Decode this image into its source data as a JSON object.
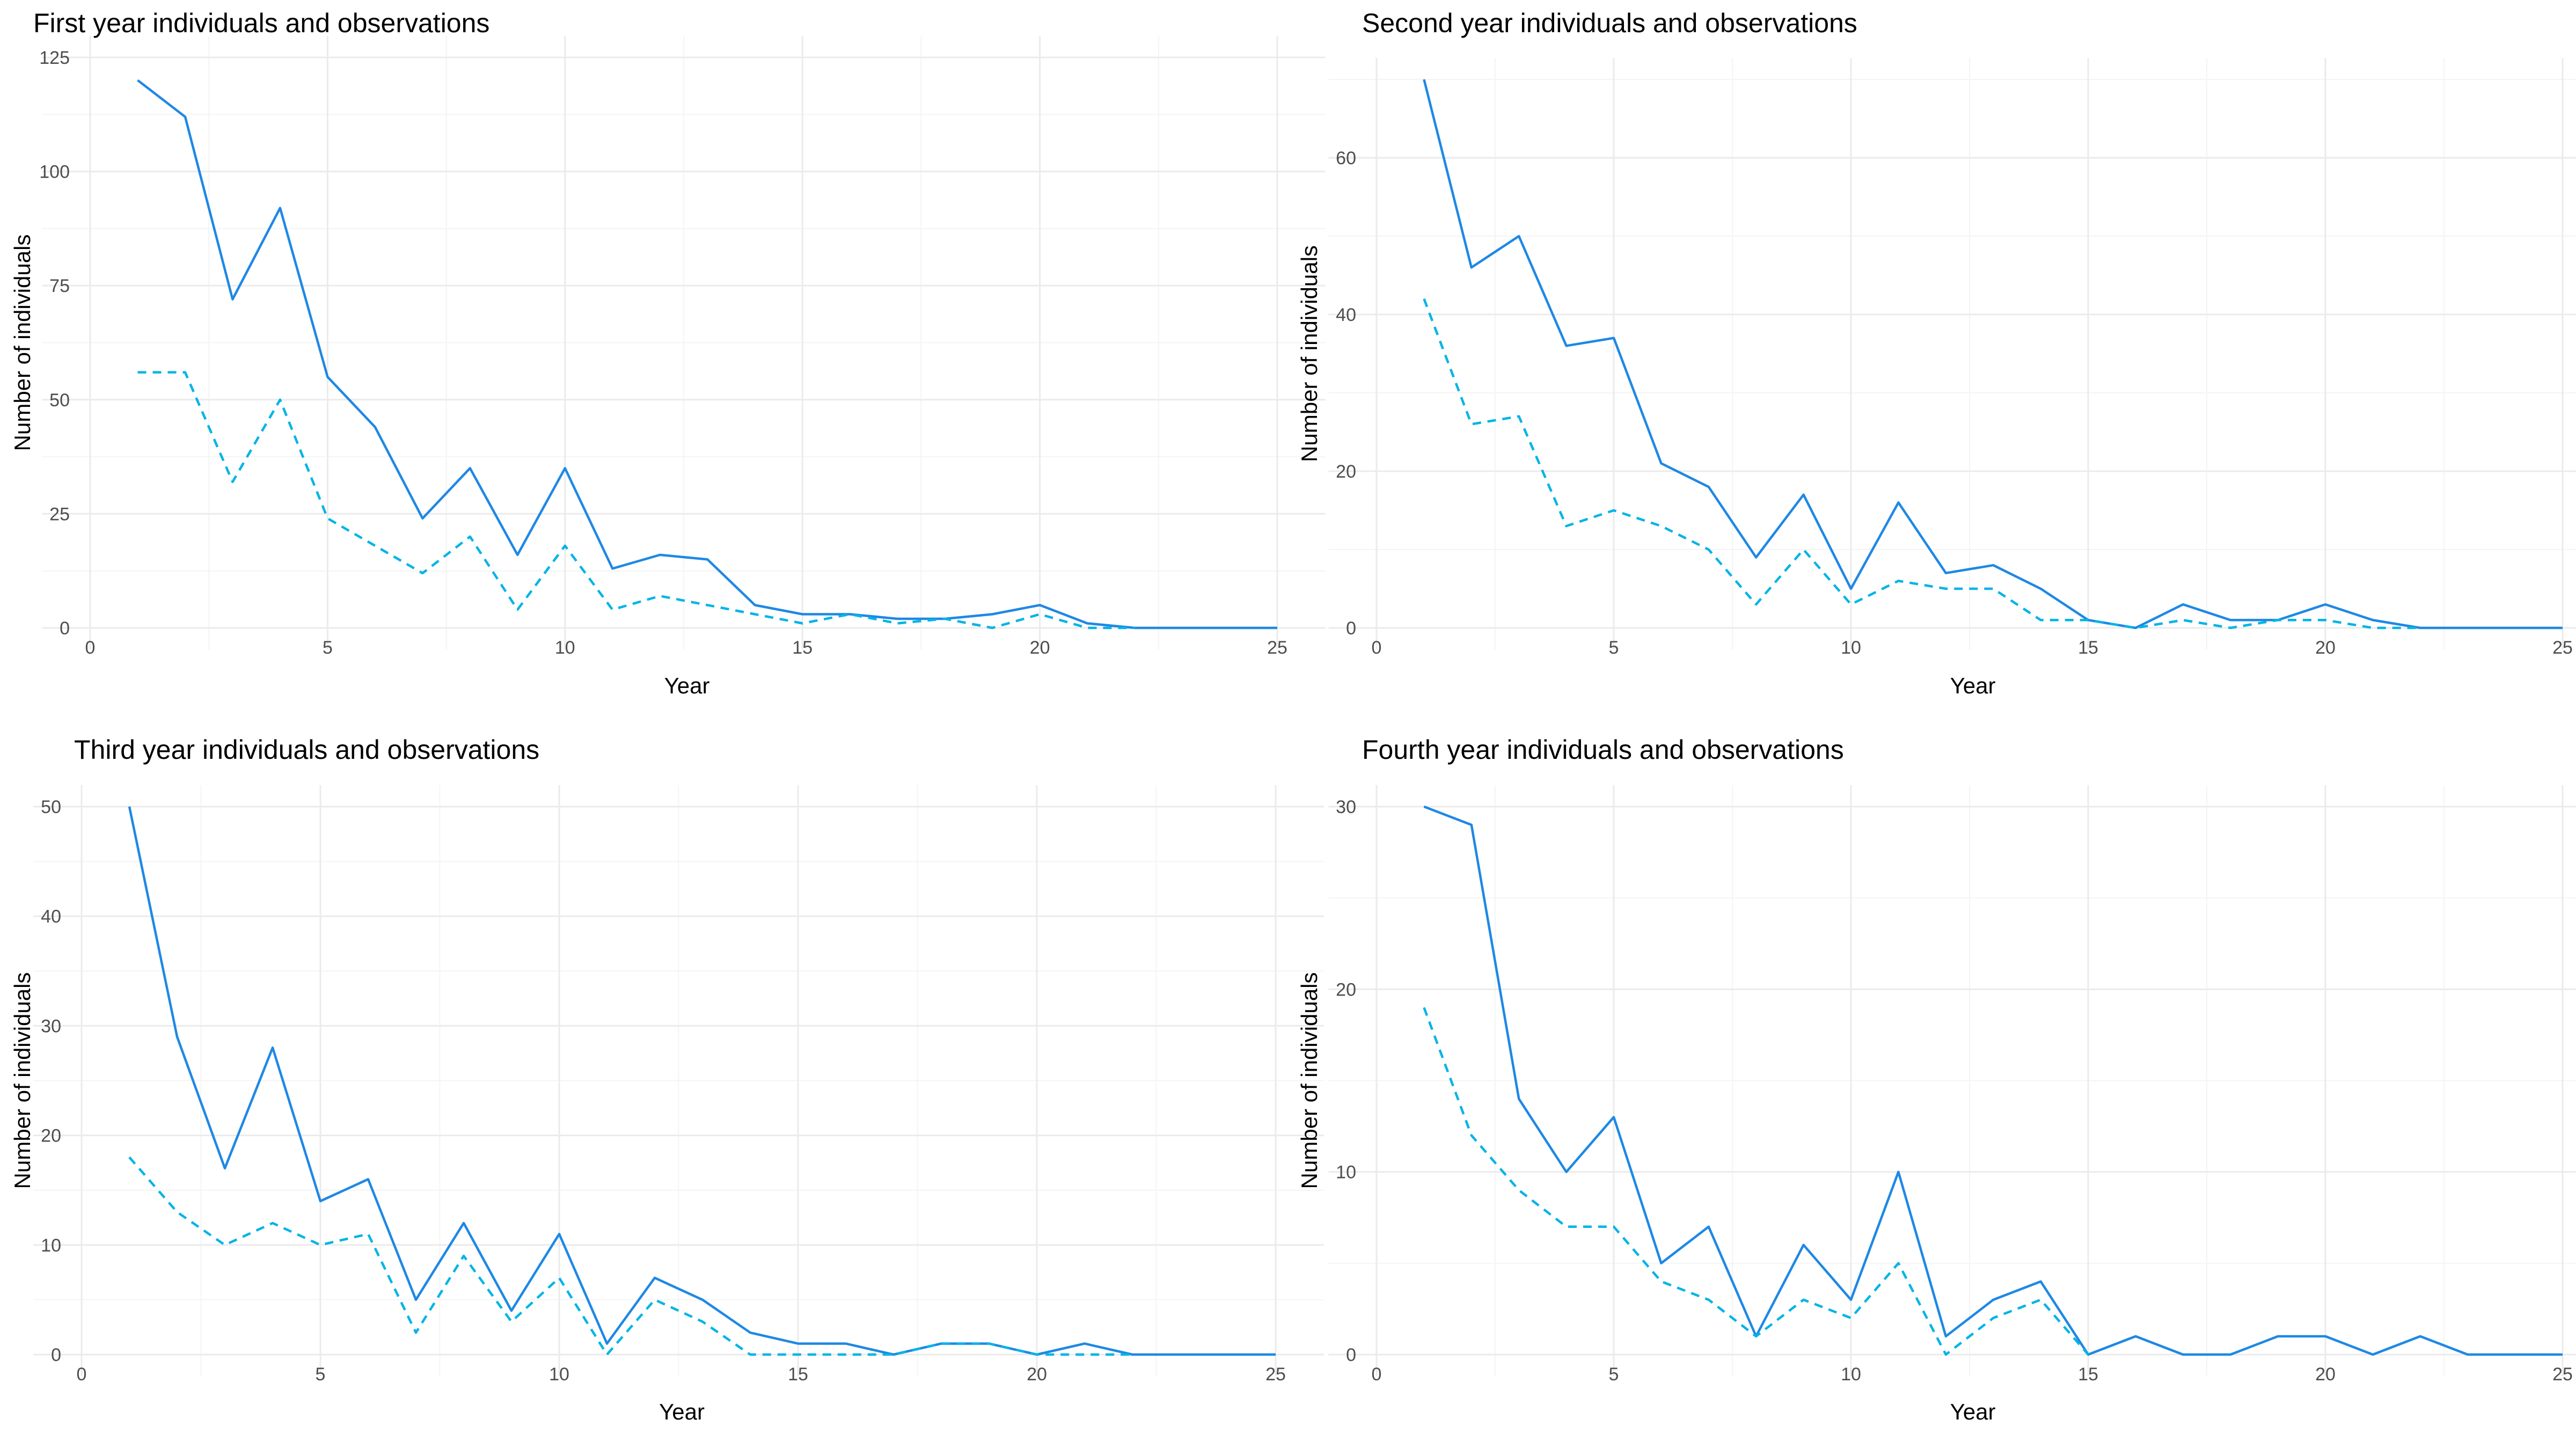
{
  "chart_data": [
    {
      "type": "line",
      "title": "First year individuals and observations",
      "xlabel": "Year",
      "ylabel": "Number of individuals",
      "xlim": [
        0,
        25
      ],
      "ylim": [
        0,
        125
      ],
      "x_ticks": [
        0,
        5,
        10,
        15,
        20,
        25
      ],
      "y_ticks": [
        0,
        25,
        50,
        75,
        100,
        125
      ],
      "grid": true,
      "legend": "none",
      "x": [
        1,
        2,
        3,
        4,
        5,
        6,
        7,
        8,
        9,
        10,
        11,
        12,
        13,
        14,
        15,
        16,
        17,
        18,
        19,
        20,
        21,
        22,
        23,
        24,
        25
      ],
      "series": [
        {
          "style": "solid",
          "color": "#1E88E5",
          "values": [
            120,
            112,
            72,
            92,
            55,
            44,
            24,
            35,
            16,
            35,
            13,
            16,
            15,
            5,
            3,
            3,
            2,
            2,
            3,
            5,
            1,
            0,
            0,
            0,
            0
          ]
        },
        {
          "style": "dashed",
          "color": "#00B4E6",
          "values": [
            56,
            56,
            32,
            50,
            24,
            18,
            12,
            20,
            4,
            18,
            4,
            7,
            5,
            3,
            1,
            3,
            1,
            2,
            0,
            3,
            0,
            0,
            null,
            null,
            null
          ]
        }
      ]
    },
    {
      "type": "line",
      "title": "Second year individuals and observations",
      "xlabel": "Year",
      "ylabel": "Number of individuals",
      "xlim": [
        0,
        25
      ],
      "ylim": [
        0,
        70
      ],
      "x_ticks": [
        0,
        5,
        10,
        15,
        20,
        25
      ],
      "y_ticks": [
        0,
        20,
        40,
        60
      ],
      "grid": true,
      "legend": "none",
      "x": [
        1,
        2,
        3,
        4,
        5,
        6,
        7,
        8,
        9,
        10,
        11,
        12,
        13,
        14,
        15,
        16,
        17,
        18,
        19,
        20,
        21,
        22,
        23,
        24,
        25
      ],
      "series": [
        {
          "style": "solid",
          "color": "#1E88E5",
          "values": [
            70,
            46,
            50,
            36,
            37,
            21,
            18,
            9,
            17,
            5,
            16,
            7,
            8,
            5,
            1,
            0,
            3,
            1,
            1,
            3,
            1,
            0,
            0,
            0,
            0
          ]
        },
        {
          "style": "dashed",
          "color": "#00B4E6",
          "values": [
            42,
            26,
            27,
            13,
            15,
            13,
            10,
            3,
            10,
            3,
            6,
            5,
            5,
            1,
            1,
            0,
            1,
            0,
            1,
            1,
            0,
            0,
            null,
            null,
            null
          ]
        }
      ]
    },
    {
      "type": "line",
      "title": "Third year individuals and observations",
      "xlabel": "Year",
      "ylabel": "Number of individuals",
      "xlim": [
        0,
        25
      ],
      "ylim": [
        0,
        50
      ],
      "x_ticks": [
        0,
        5,
        10,
        15,
        20,
        25
      ],
      "y_ticks": [
        0,
        10,
        20,
        30,
        40,
        50
      ],
      "grid": true,
      "legend": "none",
      "x": [
        1,
        2,
        3,
        4,
        5,
        6,
        7,
        8,
        9,
        10,
        11,
        12,
        13,
        14,
        15,
        16,
        17,
        18,
        19,
        20,
        21,
        22,
        23,
        24,
        25
      ],
      "series": [
        {
          "style": "solid",
          "color": "#1E88E5",
          "values": [
            50,
            29,
            17,
            28,
            14,
            16,
            5,
            12,
            4,
            11,
            1,
            7,
            5,
            2,
            1,
            1,
            0,
            1,
            1,
            0,
            1,
            0,
            0,
            0,
            0
          ]
        },
        {
          "style": "dashed",
          "color": "#00B4E6",
          "values": [
            18,
            13,
            10,
            12,
            10,
            11,
            2,
            9,
            3,
            7,
            0,
            5,
            3,
            0,
            0,
            0,
            0,
            1,
            1,
            0,
            0,
            0,
            null,
            null,
            null
          ]
        }
      ]
    },
    {
      "type": "line",
      "title": "Fourth year individuals and observations",
      "xlabel": "Year",
      "ylabel": "Number of individuals",
      "xlim": [
        0,
        25
      ],
      "ylim": [
        0,
        30
      ],
      "x_ticks": [
        0,
        5,
        10,
        15,
        20,
        25
      ],
      "y_ticks": [
        0,
        10,
        20,
        30
      ],
      "grid": true,
      "legend": "none",
      "x": [
        1,
        2,
        3,
        4,
        5,
        6,
        7,
        8,
        9,
        10,
        11,
        12,
        13,
        14,
        15,
        16,
        17,
        18,
        19,
        20,
        21,
        22,
        23,
        24,
        25
      ],
      "series": [
        {
          "style": "solid",
          "color": "#1E88E5",
          "values": [
            30,
            29,
            14,
            10,
            13,
            5,
            7,
            1,
            6,
            3,
            10,
            1,
            3,
            4,
            0,
            1,
            0,
            0,
            1,
            1,
            0,
            1,
            0,
            0,
            0
          ]
        },
        {
          "style": "dashed",
          "color": "#00B4E6",
          "values": [
            19,
            12,
            9,
            7,
            7,
            4,
            3,
            1,
            3,
            2,
            5,
            0,
            2,
            3,
            0,
            null,
            null,
            null,
            null,
            null,
            null,
            null,
            null,
            null,
            null
          ]
        }
      ]
    }
  ]
}
